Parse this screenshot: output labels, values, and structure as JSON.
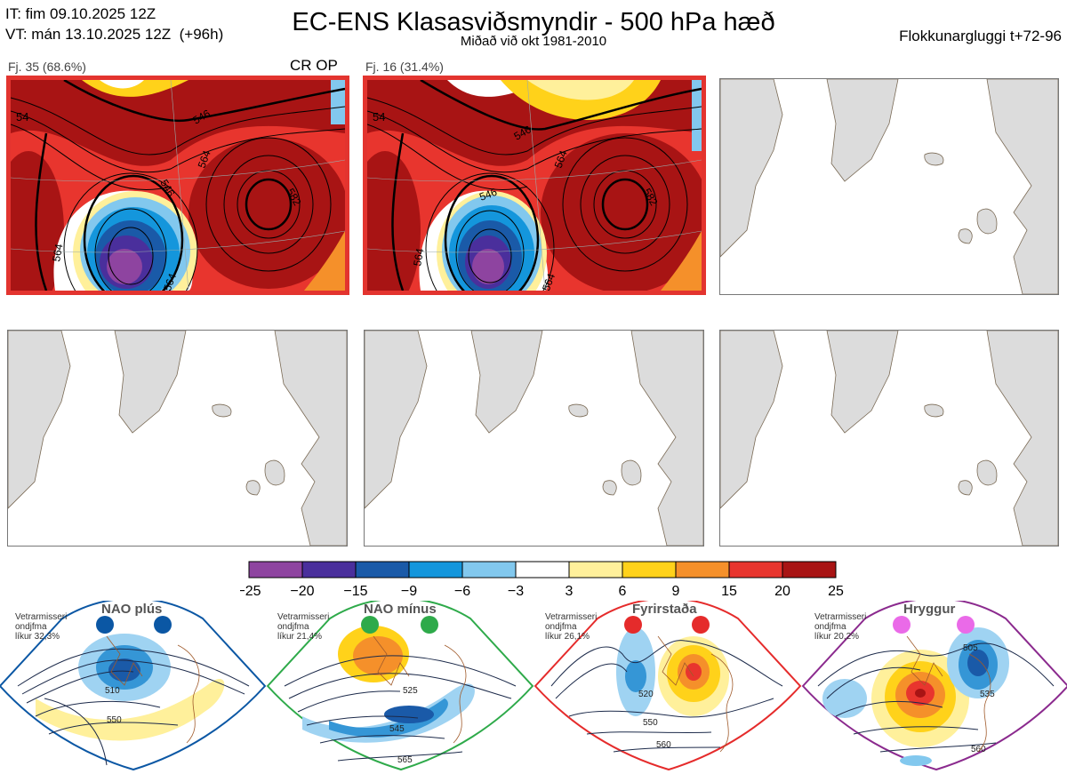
{
  "header": {
    "it_line": "IT: fim 09.10.2025 12Z",
    "vt_line": "VT: mán 13.10.2025 12Z  (+96h)",
    "title": "EC-ENS Klasasviðsmyndir - 500 hPa hæð",
    "subtitle": "Miðað við okt 1981-2010",
    "window": "Flokkunargluggi t+72-96"
  },
  "clusters": [
    {
      "label": "Fj. 35 (68.6%)",
      "tag": "CR OP",
      "contours": [
        "546",
        "564",
        "546",
        "564",
        "582",
        "564",
        "54"
      ]
    },
    {
      "label": "Fj. 16 (31.4%)",
      "tag": "",
      "contours": [
        "546",
        "564",
        "546",
        "564",
        "582",
        "564",
        "54"
      ]
    }
  ],
  "colorbar": {
    "colors": [
      "#8e44a0",
      "#4a2f9c",
      "#1a5aa8",
      "#1496dc",
      "#82c8ee",
      "#ffffff",
      "#fff09b",
      "#ffd21a",
      "#f5902a",
      "#e8352e",
      "#a81414"
    ],
    "ticks": [
      "−25",
      "−20",
      "−15",
      "−9",
      "−6",
      "−3",
      "3",
      "6",
      "9",
      "15",
      "20",
      "25"
    ]
  },
  "regimes": [
    {
      "name": "NAO plús",
      "info": "Vetrarmisseri\nondjfma\nlíkur 32,3%",
      "labels": [
        "510",
        "550"
      ],
      "color": "#0b57a4",
      "dot": "#0b57a4"
    },
    {
      "name": "NAO mínus",
      "info": "Vetrarmisseri\nondjfma\nlíkur 21,4%",
      "labels": [
        "525",
        "545",
        "565"
      ],
      "color": "#2eaa4a",
      "dot": "#2eaa4a"
    },
    {
      "name": "Fyrirstaða",
      "info": "Vetrarmisseri\nondjfma\nlíkur 26,1%",
      "labels": [
        "520",
        "550",
        "560"
      ],
      "color": "#e52b2b",
      "dot": "#e52b2b"
    },
    {
      "name": "Hryggur",
      "info": "Vetrarmisseri\nondjfma\nlíkur 20,2%",
      "labels": [
        "505",
        "535",
        "560"
      ],
      "color": "#8b2a8e",
      "dot": "#ea6ae8"
    }
  ],
  "chart_data": {
    "type": "heatmap",
    "title": "EC-ENS Klasasviðsmyndir - 500 hPa hæð",
    "subtitle": "Miðað við okt 1981-2010",
    "colorbar_levels": [
      -25,
      -20,
      -15,
      -9,
      -6,
      -3,
      3,
      6,
      9,
      15,
      20,
      25
    ],
    "clusters": [
      {
        "name": "Fj. 35",
        "percent": 68.6,
        "contour_values": [
          546,
          564,
          582
        ]
      },
      {
        "name": "Fj. 16",
        "percent": 31.4,
        "contour_values": [
          546,
          564,
          582
        ]
      }
    ],
    "regimes": [
      {
        "name": "NAO plús",
        "probability_pct": 32.3
      },
      {
        "name": "NAO mínus",
        "probability_pct": 21.4
      },
      {
        "name": "Fyrirstaða",
        "probability_pct": 26.1
      },
      {
        "name": "Hryggur",
        "probability_pct": 20.2
      }
    ]
  }
}
